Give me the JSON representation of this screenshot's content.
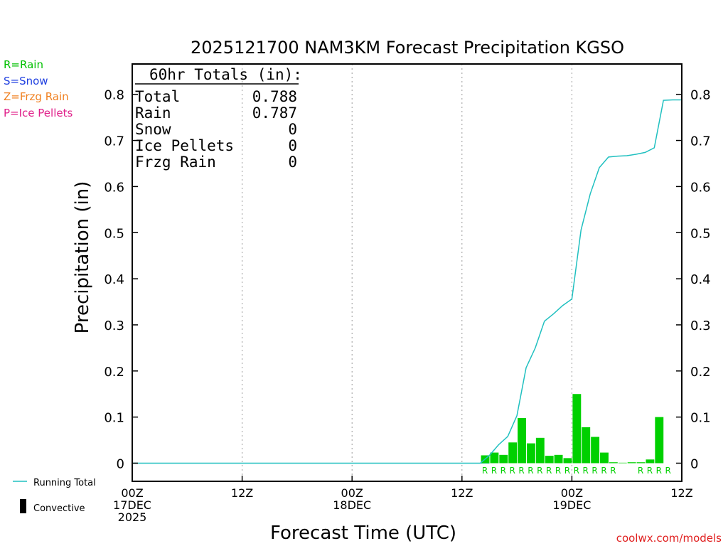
{
  "chart_data": {
    "type": "bar",
    "title": "2025121700 NAM3KM Forecast Precipitation KGSO",
    "xlabel": "Forecast Time (UTC)",
    "ylabel": "Precipitation (in)",
    "ylim": [
      -0.04,
      0.88
    ],
    "xlim_hours": [
      0,
      60
    ],
    "y_ticks": [
      0,
      0.1,
      0.2,
      0.3,
      0.4,
      0.5,
      0.6,
      0.7,
      0.8
    ],
    "y_tick_labels": [
      "0",
      "0.1",
      "0.2",
      "0.3",
      "0.4",
      "0.5",
      "0.6",
      "0.7",
      "0.8"
    ],
    "x_ticks": [
      {
        "hour": 0,
        "lines": [
          "00Z",
          "17DEC",
          "2025"
        ]
      },
      {
        "hour": 12,
        "lines": [
          "12Z"
        ]
      },
      {
        "hour": 24,
        "lines": [
          "00Z",
          "18DEC"
        ]
      },
      {
        "hour": 36,
        "lines": [
          "12Z"
        ]
      },
      {
        "hour": 48,
        "lines": [
          "00Z",
          "19DEC"
        ]
      },
      {
        "hour": 60,
        "lines": [
          "12Z"
        ]
      }
    ],
    "grid_hours": [
      12,
      24,
      36,
      48
    ],
    "bar_hours": [
      39,
      40,
      41,
      42,
      43,
      44,
      45,
      46,
      47,
      48,
      49,
      50,
      51,
      52,
      53,
      54,
      55,
      56,
      57,
      58,
      59
    ],
    "bar_values": [
      0.017,
      0.023,
      0.018,
      0.045,
      0.098,
      0.043,
      0.055,
      0.016,
      0.018,
      0.011,
      0.15,
      0.078,
      0.057,
      0.023,
      0.002,
      0.001,
      0.002,
      0.002,
      0.008,
      0.1,
      0.0
    ],
    "running_total": {
      "name": "Running Total",
      "hours": [
        0,
        38,
        39,
        40,
        41,
        42,
        43,
        44,
        45,
        46,
        47,
        48,
        49,
        50,
        51,
        52,
        53,
        54,
        55,
        56,
        57,
        58,
        59,
        60
      ],
      "values": [
        0,
        0,
        0.017,
        0.04,
        0.058,
        0.103,
        0.207,
        0.25,
        0.308,
        0.324,
        0.342,
        0.356,
        0.506,
        0.584,
        0.641,
        0.664,
        0.666,
        0.667,
        0.67,
        0.674,
        0.684,
        0.787,
        0.788,
        0.788
      ]
    },
    "ptype_markers": {
      "hours": [
        39,
        40,
        41,
        42,
        43,
        44,
        45,
        46,
        47,
        48,
        49,
        50,
        51,
        52,
        53,
        56,
        57,
        58,
        59
      ],
      "label": "R"
    },
    "colors": {
      "rain": "#00d000",
      "running_total": "#20c0c0",
      "text": "#000000"
    }
  },
  "totals_box": {
    "heading": "60hr Totals (in):",
    "rows": [
      {
        "label": "Total",
        "value": "0.788"
      },
      {
        "label": "Rain",
        "value": "0.787"
      },
      {
        "label": "Snow",
        "value": "0"
      },
      {
        "label": "Ice Pellets",
        "value": "0"
      },
      {
        "label": "Frzg Rain",
        "value": "0"
      }
    ]
  },
  "ptype_legend": [
    {
      "text": "R=Rain",
      "color": "#00c000"
    },
    {
      "text": "S=Snow",
      "color": "#2040e0"
    },
    {
      "text": "Z=Frzg Rain",
      "color": "#f08020"
    },
    {
      "text": "P=Ice Pellets",
      "color": "#e0208a"
    }
  ],
  "series_legend": {
    "running_total": "Running Total",
    "convective": "Convective"
  },
  "credit": "coolwx.com/models"
}
